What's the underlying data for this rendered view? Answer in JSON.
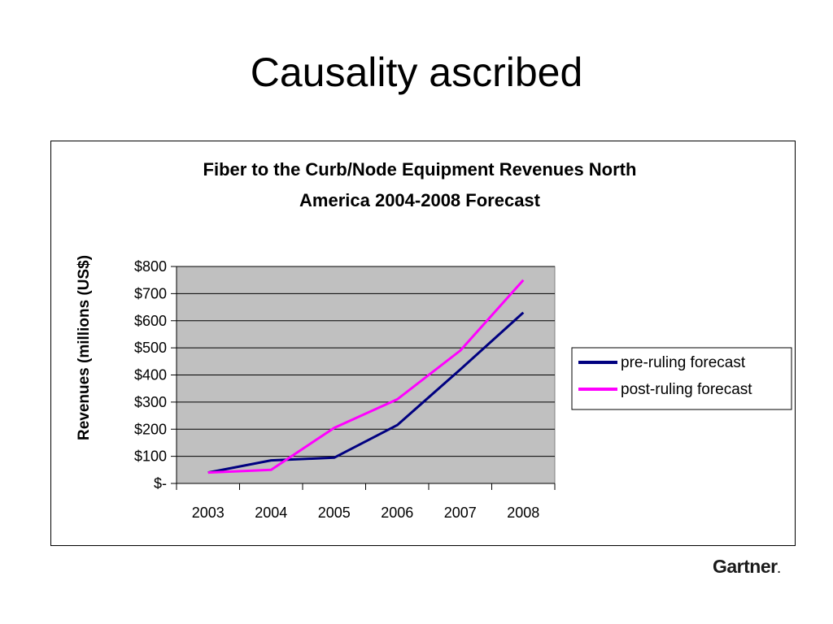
{
  "slide": {
    "title": "Causality ascribed",
    "logo_text": "Gartner"
  },
  "chart_data": {
    "type": "line",
    "title_line1": "Fiber to the Curb/Node Equipment Revenues North",
    "title_line2": "America 2004-2008 Forecast",
    "xlabel": "",
    "ylabel": "Revenues (millions (US$)",
    "categories": [
      "2003",
      "2004",
      "2005",
      "2006",
      "2007",
      "2008"
    ],
    "y_tick_values": [
      0,
      100,
      200,
      300,
      400,
      500,
      600,
      700,
      800
    ],
    "y_tick_labels": [
      "$-",
      "$100",
      "$200",
      "$300",
      "$400",
      "$500",
      "$600",
      "$700",
      "$800"
    ],
    "ylim": [
      0,
      800
    ],
    "grid": true,
    "plot_background": "#c0c0c0",
    "legend_position": "right",
    "series": [
      {
        "name": "pre-ruling forecast",
        "color": "#000080",
        "values": [
          40,
          85,
          95,
          215,
          420,
          630
        ]
      },
      {
        "name": "post-ruling forecast",
        "color": "#ff00ff",
        "values": [
          40,
          50,
          205,
          310,
          490,
          750
        ]
      }
    ]
  }
}
